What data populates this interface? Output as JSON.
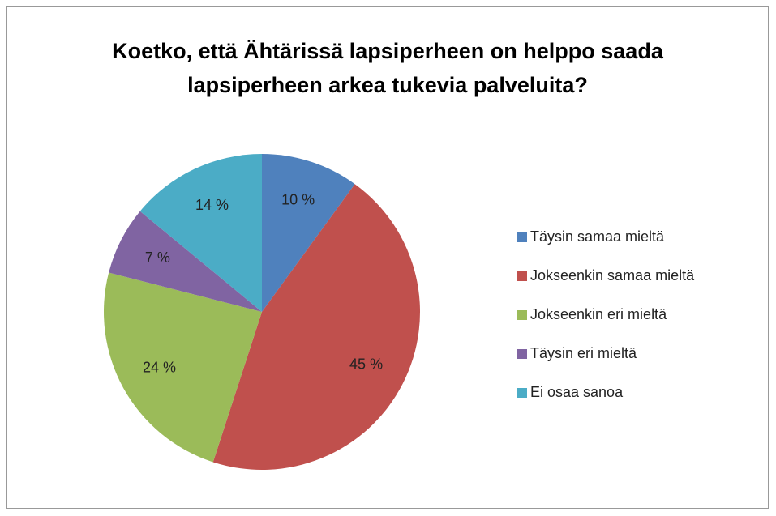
{
  "chart_data": {
    "type": "pie",
    "title": "Koetko, että Ähtärissä lapsiperheen on helppo saada lapsiperheen arkea tukevia palveluita?",
    "categories": [
      "Täysin samaa mieltä",
      "Jokseenkin samaa mieltä",
      "Jokseenkin eri mieltä",
      "Täysin eri mieltä",
      "Ei osaa sanoa"
    ],
    "values": [
      10,
      45,
      24,
      7,
      14
    ],
    "value_labels": [
      "10 %",
      "45 %",
      "24 %",
      "7 %",
      "14 %"
    ],
    "colors": [
      "#4f81bd",
      "#c0504d",
      "#9bbb59",
      "#8064a2",
      "#4bacc6"
    ],
    "legend": "right"
  }
}
